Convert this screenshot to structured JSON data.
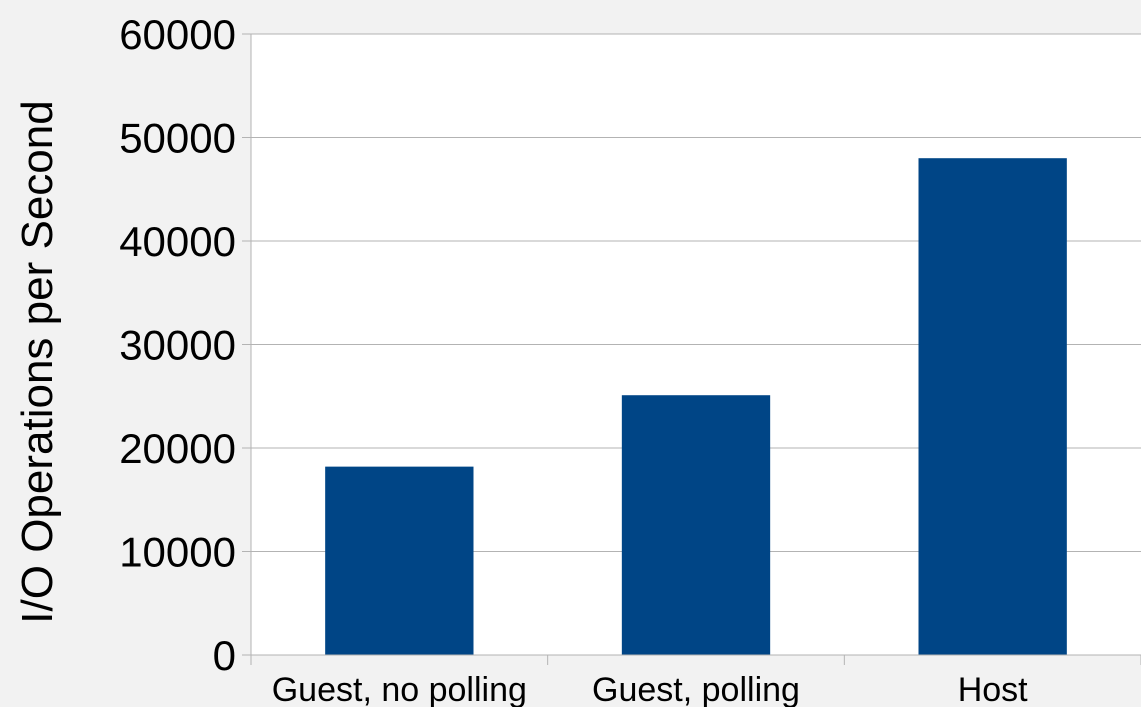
{
  "chart_data": {
    "type": "bar",
    "categories": [
      "Guest, no polling",
      "Guest, polling",
      "Host"
    ],
    "values": [
      18200,
      25100,
      48000
    ],
    "title": "",
    "xlabel": "",
    "ylabel": "I/O Operations per Second",
    "ylim": [
      0,
      60000
    ],
    "yticks": [
      "0",
      "10000",
      "20000",
      "30000",
      "40000",
      "50000",
      "60000"
    ],
    "grid": true,
    "legend": "none"
  },
  "colors": {
    "bar": "#004586",
    "background": "#f2f2f2",
    "plot_background": "#ffffff",
    "grid": "#b3b3b3"
  }
}
